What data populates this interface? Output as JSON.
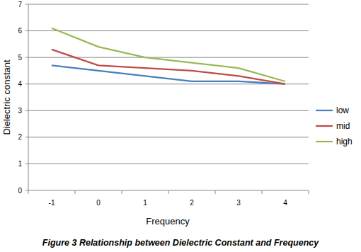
{
  "chart_data": {
    "type": "line",
    "title": "Figure 3 Relationship between Dielectric Constant and Frequency",
    "x_label": "Frequency",
    "y_label": "Dielectric constant",
    "categories": [
      "-1",
      "0",
      "1",
      "2",
      "3",
      "4"
    ],
    "series": [
      {
        "name": "low",
        "color": "#4a7ebb",
        "values": [
          4.7,
          4.5,
          4.3,
          4.1,
          4.1,
          4.0
        ]
      },
      {
        "name": "mid",
        "color": "#be4b48",
        "values": [
          5.3,
          4.7,
          4.6,
          4.5,
          4.3,
          4.0
        ]
      },
      {
        "name": "high",
        "color": "#98b954",
        "values": [
          6.1,
          5.4,
          5.0,
          4.8,
          4.6,
          4.1
        ]
      }
    ],
    "ylim": [
      0,
      7
    ],
    "yticks": [
      0,
      1,
      2,
      3,
      4,
      5,
      6,
      7
    ],
    "grid": true,
    "legend": "right"
  }
}
